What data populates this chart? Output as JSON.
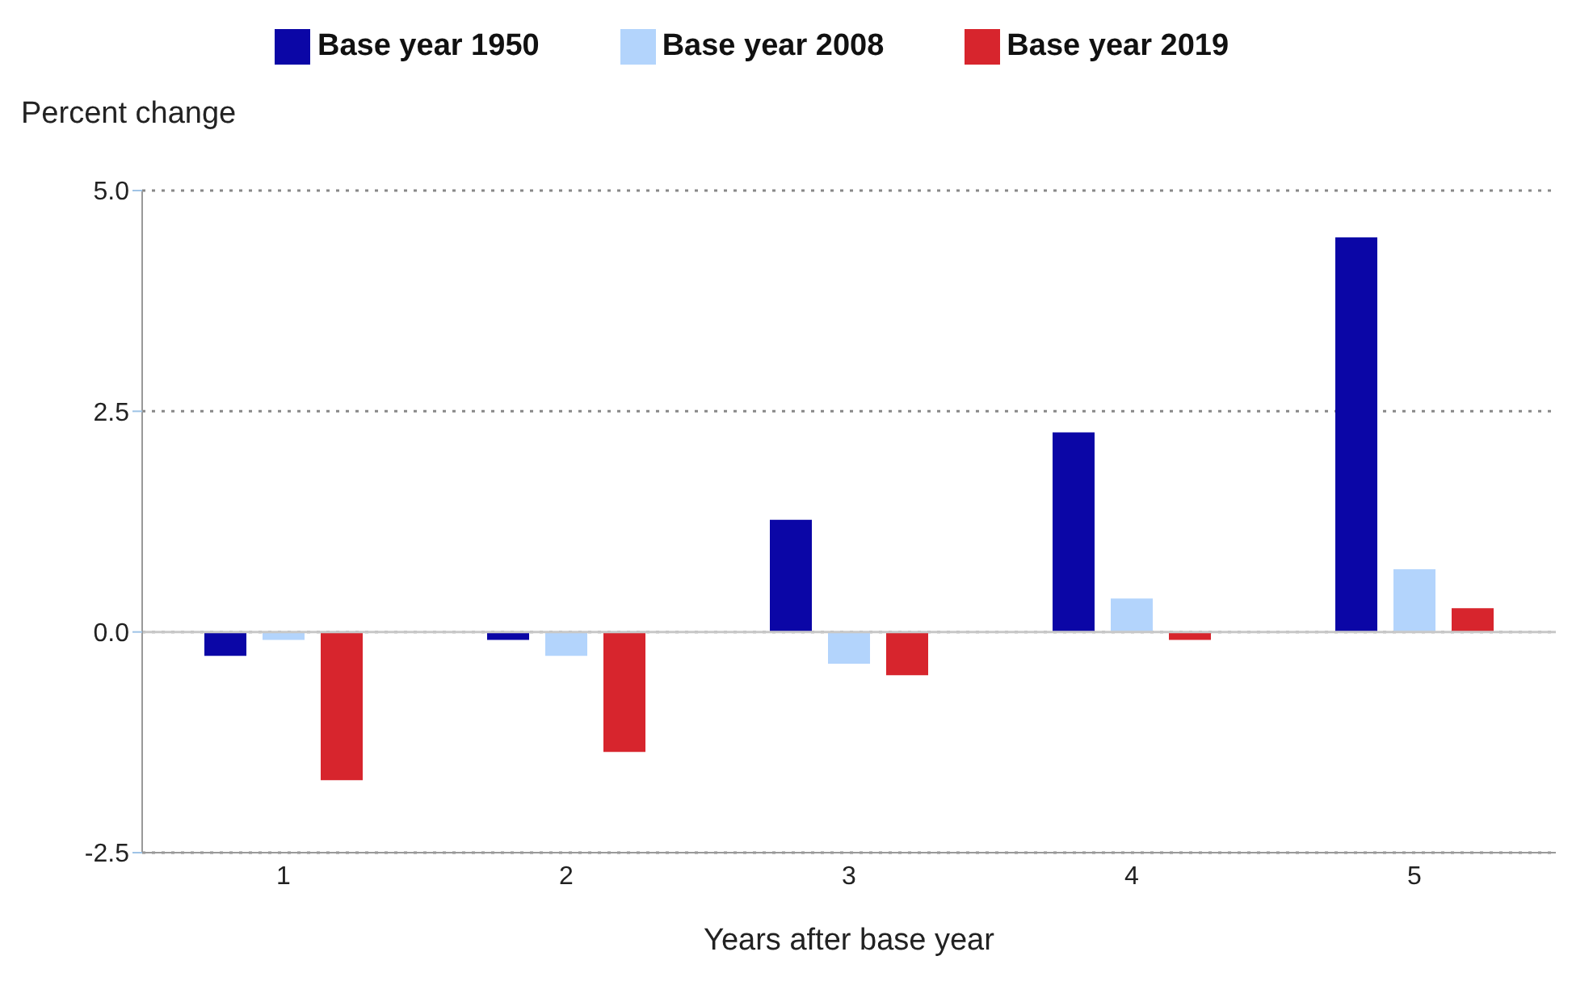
{
  "chart_data": {
    "type": "bar",
    "xlabel": "Years after base year",
    "ylabel": "Percent change",
    "categories": [
      "1",
      "2",
      "3",
      "4",
      "5"
    ],
    "series": [
      {
        "name": "Base year 1950",
        "color": "#0b06a6",
        "values": [
          -0.27,
          -0.09,
          1.27,
          2.26,
          4.47
        ]
      },
      {
        "name": "Base year 2008",
        "color": "#b3d4fc",
        "values": [
          -0.09,
          -0.27,
          -0.36,
          0.38,
          0.71
        ]
      },
      {
        "name": "Base year 2019",
        "color": "#d7252d",
        "values": [
          -1.68,
          -1.36,
          -0.49,
          -0.09,
          0.27
        ]
      }
    ],
    "ylim": [
      -2.5,
      5
    ],
    "yticks": [
      {
        "value": -2.5,
        "label": "-2.5"
      },
      {
        "value": 0,
        "label": "0.0"
      },
      {
        "value": 2.5,
        "label": "2.5"
      },
      {
        "value": 5,
        "label": "5.0"
      }
    ],
    "ref_lines": [
      {
        "axis": "y",
        "value": 0,
        "label": null,
        "color": "#c8c8c8",
        "line_style": "solid"
      }
    ],
    "grid": "y",
    "legend": "top"
  }
}
